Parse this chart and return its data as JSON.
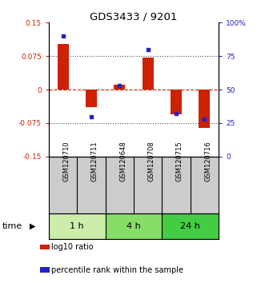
{
  "title": "GDS3433 / 9201",
  "samples": [
    "GSM120710",
    "GSM120711",
    "GSM120648",
    "GSM120708",
    "GSM120715",
    "GSM120716"
  ],
  "log10_ratio": [
    0.103,
    -0.04,
    0.01,
    0.072,
    -0.055,
    -0.085
  ],
  "percentile_rank": [
    0.9,
    0.3,
    0.53,
    0.8,
    0.32,
    0.28
  ],
  "ylim": [
    -0.15,
    0.15
  ],
  "yticks_left": [
    -0.15,
    -0.075,
    0,
    0.075,
    0.15
  ],
  "ytick_labels_left": [
    "-0.15",
    "-0.075",
    "0",
    "0.075",
    "0.15"
  ],
  "yticks_right": [
    0.0,
    0.25,
    0.5,
    0.75,
    1.0
  ],
  "ytick_labels_right": [
    "0",
    "25",
    "50",
    "75",
    "100%"
  ],
  "bar_color": "#cc2200",
  "dot_color": "#2222cc",
  "zero_line_color": "#cc2200",
  "dotted_line_color": "#555555",
  "groups": [
    {
      "label": "1 h",
      "indices": [
        0,
        1
      ],
      "color": "#cceeaa"
    },
    {
      "label": "4 h",
      "indices": [
        2,
        3
      ],
      "color": "#88dd66"
    },
    {
      "label": "24 h",
      "indices": [
        4,
        5
      ],
      "color": "#44cc44"
    }
  ],
  "time_label": "time",
  "legend_items": [
    {
      "color": "#cc2200",
      "label": "log10 ratio"
    },
    {
      "color": "#2222cc",
      "label": "percentile rank within the sample"
    }
  ],
  "sample_bg_color": "#cccccc",
  "bar_width": 0.4
}
